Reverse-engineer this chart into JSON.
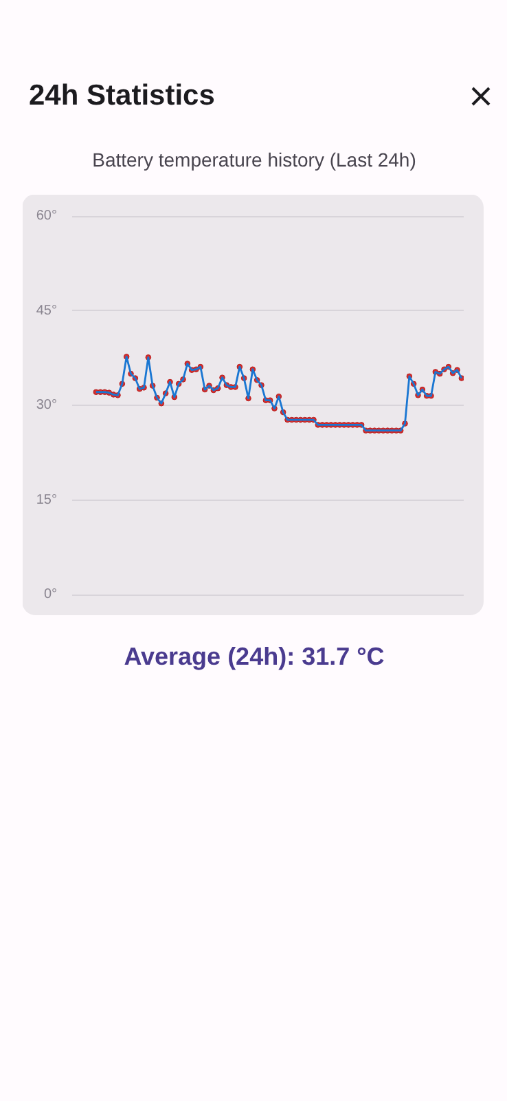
{
  "chart_data": {
    "type": "line",
    "title": "24h Statistics",
    "subtitle": "Battery temperature history (Last 24h)",
    "annotations": [
      "Average (24h): 31.7 °C"
    ],
    "categories": [
      null,
      null,
      null,
      null,
      null,
      null,
      null,
      null,
      null,
      null,
      null,
      null,
      null,
      null,
      null,
      null,
      null,
      null,
      null,
      null,
      null,
      null,
      null,
      null,
      null,
      null,
      null,
      null,
      null,
      null,
      null,
      null,
      null,
      null,
      null,
      null,
      null,
      null,
      null,
      null,
      null,
      null,
      null,
      null,
      null,
      null,
      null,
      null,
      null,
      null,
      null,
      null,
      null,
      null,
      null,
      null,
      null,
      null,
      null,
      null,
      null,
      null,
      null,
      null,
      null,
      null,
      null,
      null,
      null,
      null,
      null,
      null,
      null,
      null,
      null,
      null,
      null,
      null,
      null,
      null,
      null,
      null,
      null,
      null,
      null
    ],
    "series": [
      {
        "color": "#1976d2",
        "values": [
          32.1,
          32.1,
          32.1,
          32.0,
          31.7,
          31.6,
          33.4,
          37.7,
          35.0,
          34.3,
          32.6,
          32.8,
          37.6,
          33.1,
          31.2,
          30.3,
          31.9,
          33.7,
          31.3,
          33.4,
          34.1,
          36.6,
          35.6,
          35.7,
          36.1,
          32.5,
          33.1,
          32.4,
          32.7,
          34.4,
          33.2,
          32.9,
          32.9,
          36.1,
          34.3,
          31.1,
          35.7,
          34.0,
          33.2,
          30.8,
          30.8,
          29.5,
          31.4,
          28.9,
          27.7,
          27.7,
          27.7,
          27.7,
          27.7,
          27.7,
          27.7,
          26.9,
          26.9,
          26.9,
          26.9,
          26.9,
          26.9,
          26.9,
          26.9,
          26.9,
          26.9,
          26.9,
          26.0,
          26.0,
          26.0,
          26.0,
          26.0,
          26.0,
          26.0,
          26.0,
          26.0,
          27.1,
          34.6,
          33.4,
          31.6,
          32.5,
          31.5,
          31.5,
          35.3,
          35.0,
          35.7,
          36.1,
          35.1,
          35.6,
          34.3
        ]
      }
    ],
    "ylim": [
      0,
      60
    ],
    "yticks": [
      {
        "value": 0,
        "label": "0°"
      },
      {
        "value": 15,
        "label": "15°"
      },
      {
        "value": 30,
        "label": "30°"
      },
      {
        "value": 45,
        "label": "45°"
      },
      {
        "value": 60,
        "label": "60°"
      }
    ],
    "grid": "y",
    "marker": "circle",
    "line_style": "solid",
    "tick_labels": "y"
  }
}
